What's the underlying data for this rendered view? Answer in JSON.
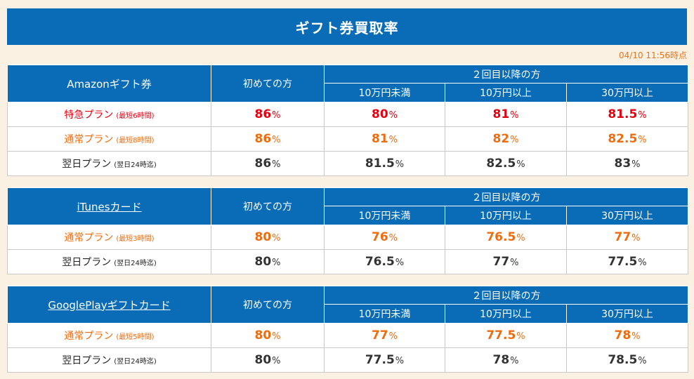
{
  "page": {
    "title": "ギフト券買取率",
    "timestamp": "04/10 11:56時点"
  },
  "header_labels": {
    "first": "初めての方",
    "repeat": "２回目以降の方",
    "tier1": "10万円未満",
    "tier2": "10万円以上",
    "tier3": "30万円以上",
    "pct": "%"
  },
  "colors": {
    "header_blue": "#0a6cb7",
    "express_red": "#e60012",
    "normal_orange": "#ee6c0e",
    "nextday_dark": "#333333",
    "background": "#fbf1e2"
  },
  "tables": [
    {
      "name": "Amazonギフト券",
      "linked": false,
      "rows": [
        {
          "plan": "特急プラン",
          "note": "(最短6時間)",
          "style": "red",
          "values": [
            "86",
            "80",
            "81",
            "81.5"
          ]
        },
        {
          "plan": "通常プラン",
          "note": "(最短8時間)",
          "style": "orange",
          "values": [
            "86",
            "81",
            "82",
            "82.5"
          ]
        },
        {
          "plan": "翌日プラン",
          "note": "(翌日24時迄)",
          "style": "dark",
          "values": [
            "86",
            "81.5",
            "82.5",
            "83"
          ]
        }
      ]
    },
    {
      "name": "iTunesカード",
      "linked": true,
      "rows": [
        {
          "plan": "通常プラン",
          "note": "(最短3時間)",
          "style": "orange",
          "values": [
            "80",
            "76",
            "76.5",
            "77"
          ]
        },
        {
          "plan": "翌日プラン",
          "note": "(翌日24時迄)",
          "style": "dark",
          "values": [
            "80",
            "76.5",
            "77",
            "77.5"
          ]
        }
      ]
    },
    {
      "name": "GooglePlayギフトカード",
      "linked": true,
      "rows": [
        {
          "plan": "通常プラン",
          "note": "(最短5時間)",
          "style": "orange",
          "values": [
            "80",
            "77",
            "77.5",
            "78"
          ]
        },
        {
          "plan": "翌日プラン",
          "note": "(翌日24時迄)",
          "style": "dark",
          "values": [
            "80",
            "77.5",
            "78",
            "78.5"
          ]
        }
      ]
    }
  ]
}
